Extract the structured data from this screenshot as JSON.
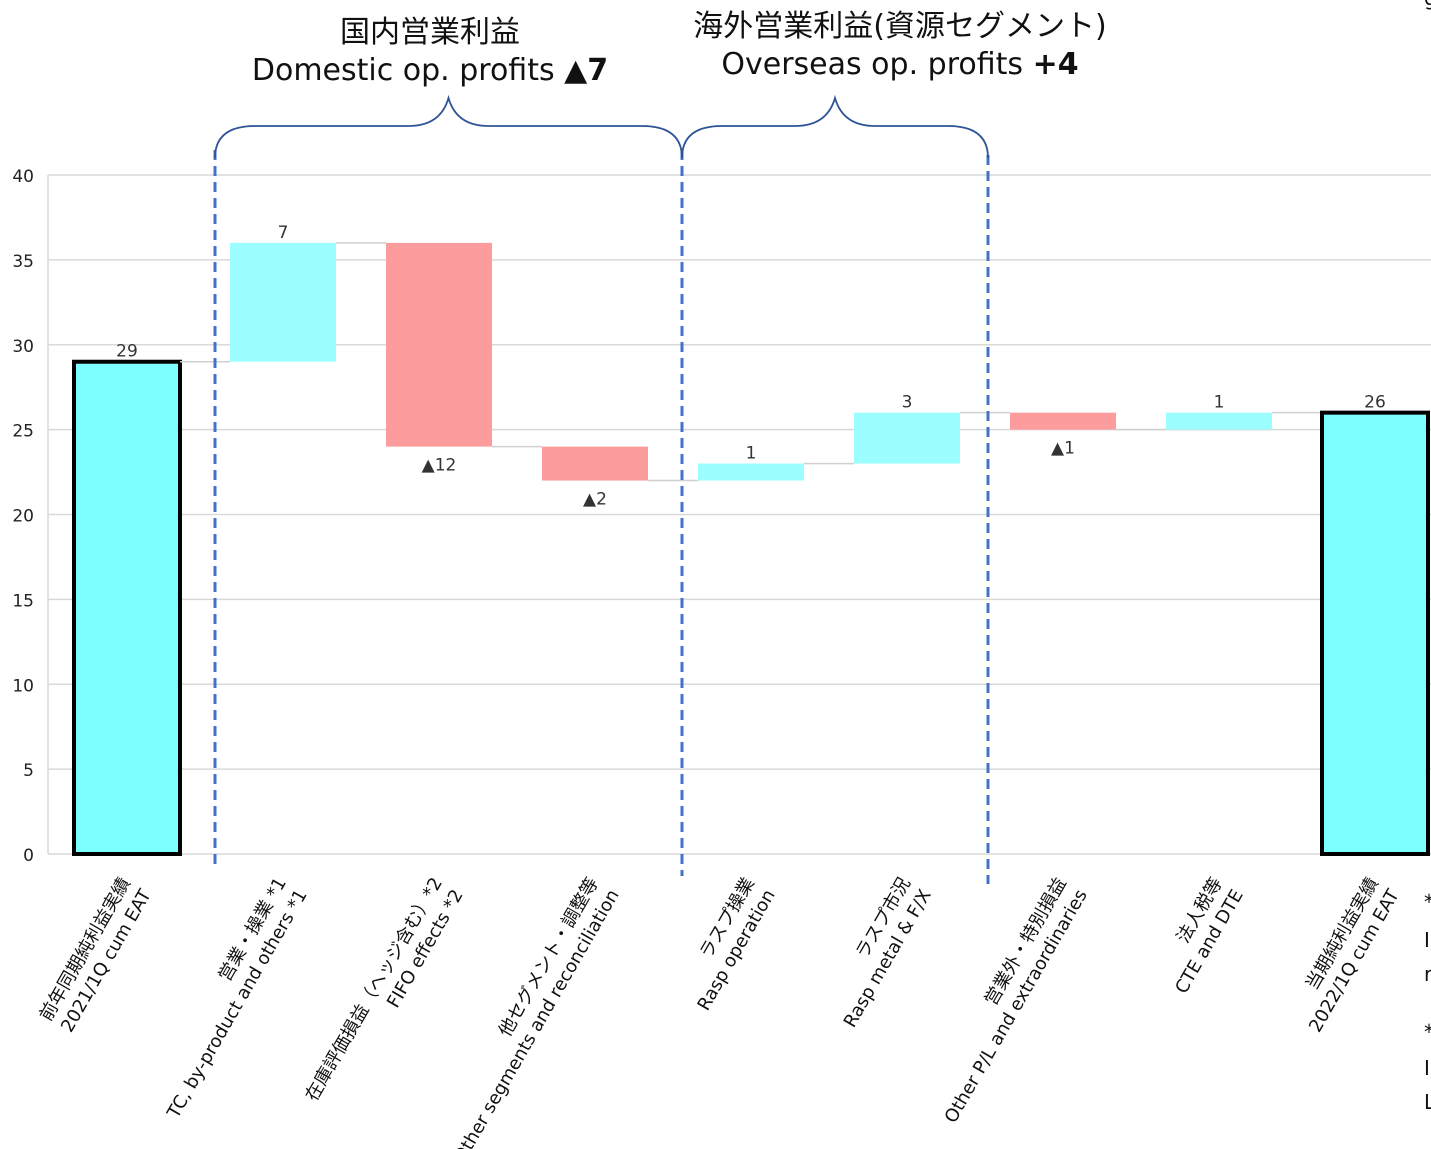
{
  "headers": {
    "domestic": {
      "jp": "国内営業利益",
      "en": "Domestic op. profits",
      "value": "▲7"
    },
    "overseas": {
      "jp": "海外営業利益(資源セグメント)",
      "en": "Overseas op. profits",
      "value": "+4"
    }
  },
  "side_fragments": [
    "g",
    "*",
    "I",
    "r",
    "*",
    "I",
    "L"
  ],
  "colors": {
    "positive": "#9cfefe",
    "negative": "#fd9c9c",
    "total": "#7dffff",
    "total_border": "#000000",
    "grid": "#d9d9d9",
    "divider": "#4472c4",
    "brace": "#2f5597"
  },
  "chart_data": {
    "type": "bar",
    "subtype": "waterfall",
    "ylim": [
      0,
      40
    ],
    "yticks": [
      "0",
      "5",
      "10",
      "15",
      "20",
      "25",
      "30",
      "35",
      "40"
    ],
    "grid": true,
    "categories": [
      {
        "jp": "前年同期純利益実績",
        "en": "2021/1Q cum EAT"
      },
      {
        "jp": "営業・操業 *1",
        "en": "TC, by-product and others *1"
      },
      {
        "jp": "在庫評価損益（ヘッジ含む）*2",
        "en": "FIFO effects *2"
      },
      {
        "jp": "他セグメント・調整等",
        "en": "Other segments and reconciliation"
      },
      {
        "jp": "ラスプ操業",
        "en": "Rasp operation"
      },
      {
        "jp": "ラスプ市況",
        "en": "Rasp metal & F/X"
      },
      {
        "jp": "営業外・特別損益",
        "en": "Other P/L and extraordinaries"
      },
      {
        "jp": "法人税等",
        "en": "CTE and DTE"
      },
      {
        "jp": "当期純利益実績",
        "en": "2022/1Q cum EAT"
      }
    ],
    "bars": [
      {
        "kind": "total",
        "start": 0,
        "end": 29,
        "label": "29"
      },
      {
        "kind": "increase",
        "start": 29,
        "end": 36,
        "label": "7"
      },
      {
        "kind": "decrease",
        "start": 36,
        "end": 24,
        "label": "▲12"
      },
      {
        "kind": "decrease",
        "start": 24,
        "end": 22,
        "label": "▲2"
      },
      {
        "kind": "increase",
        "start": 22,
        "end": 23,
        "label": "1"
      },
      {
        "kind": "increase",
        "start": 23,
        "end": 26,
        "label": "3"
      },
      {
        "kind": "decrease",
        "start": 26,
        "end": 25,
        "label": "▲1"
      },
      {
        "kind": "increase",
        "start": 25,
        "end": 26,
        "label": "1"
      },
      {
        "kind": "total",
        "start": 0,
        "end": 26,
        "label": "26"
      }
    ]
  }
}
